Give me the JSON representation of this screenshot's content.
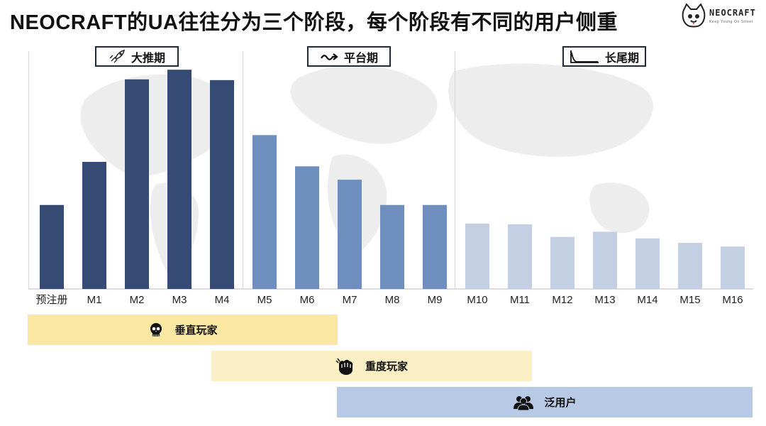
{
  "title": "NEOCRAFT的UA往往分为三个阶段，每个阶段有不同的用户侧重",
  "logo": {
    "text": "NEOCRAFT",
    "subtext": "Keep Young On Street"
  },
  "stages": [
    {
      "label": "大推期",
      "icon": "rocket-icon"
    },
    {
      "label": "平台期",
      "icon": "squiggle-arrow-icon"
    },
    {
      "label": "长尾期",
      "icon": "long-tail-icon"
    }
  ],
  "bands": [
    {
      "label": "垂直玩家",
      "icon": "skull-icon",
      "color": "#fae7a2",
      "range": [
        "预注册",
        "M7"
      ]
    },
    {
      "label": "重度玩家",
      "icon": "fist-icon",
      "color": "#fbefc6",
      "range": [
        "M4",
        "M11"
      ]
    },
    {
      "label": "泛用户",
      "icon": "users-icon",
      "color": "#b8c9e5",
      "range": [
        "M7",
        "M16"
      ]
    }
  ],
  "chart_data": {
    "type": "bar",
    "categories": [
      "预注册",
      "M1",
      "M2",
      "M3",
      "M4",
      "M5",
      "M6",
      "M7",
      "M8",
      "M9",
      "M10",
      "M11",
      "M12",
      "M13",
      "M14",
      "M15",
      "M16"
    ],
    "values": [
      113,
      171,
      282,
      295,
      281,
      207,
      165,
      147,
      113,
      113,
      88,
      87,
      70,
      77,
      68,
      62,
      57
    ],
    "colors": [
      "#354b73",
      "#354b73",
      "#354b73",
      "#354b73",
      "#354b73",
      "#6e8fbd",
      "#6e8fbd",
      "#6e8fbd",
      "#6e8fbd",
      "#6e8fbd",
      "#c3cfe3",
      "#c3cfe3",
      "#c3cfe3",
      "#c3cfe3",
      "#c3cfe3",
      "#c3cfe3",
      "#c3cfe3"
    ],
    "ylim": [
      0,
      320
    ],
    "grid": false,
    "xlabel": "",
    "ylabel": ""
  }
}
